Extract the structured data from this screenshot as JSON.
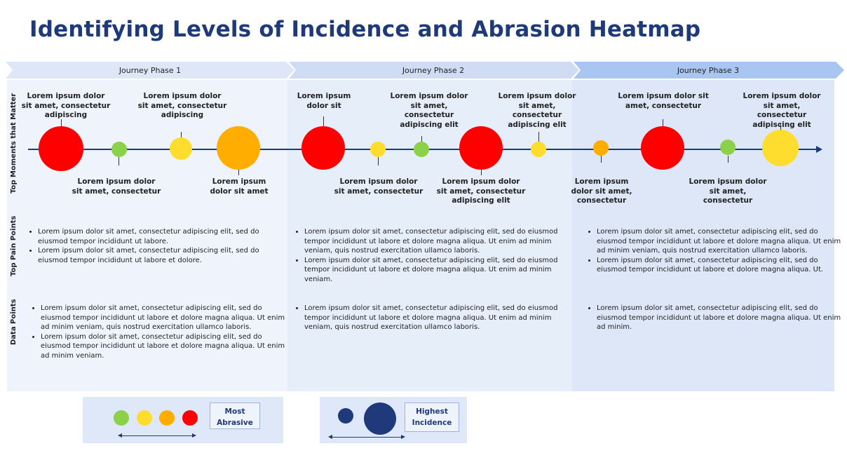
{
  "title": "Identifying Levels of Incidence and Abrasion Heatmap",
  "phases": [
    "Journey Phase 1",
    "Journey Phase 2",
    "Journey Phase 3"
  ],
  "row_labels": {
    "moments": "Top Moments that Matter",
    "pain": "Top Pain Points",
    "data": "Data Points"
  },
  "colors": {
    "red": "#ff0000",
    "orange": "#ffad00",
    "yellow": "#ffdd2e",
    "green": "#8cd14a",
    "navy": "#1f3a7a"
  },
  "moment_labels": {
    "p1_top_a": "Lorem ipsum dolor sit amet, consectetur adipiscing",
    "p1_top_b": "Lorem ipsum dolor sit amet, consectetur adipiscing",
    "p1_bot_a": "Lorem ipsum dolor sit amet, consectetur",
    "p1_bot_b": "Lorem ipsum dolor sit amet",
    "p2_top_a": "Lorem ipsum dolor sit",
    "p2_top_b": "Lorem ipsum dolor sit amet, consectetur adipiscing elit",
    "p2_top_c": "Lorem ipsum dolor sit amet, consectetur adipiscing elit",
    "p2_bot_a": "Lorem ipsum dolor sit amet, consectetur",
    "p2_bot_b": "Lorem ipsum dolor sit amet, consectetur adipiscing elit",
    "p3_top_a": "Lorem ipsum dolor sit amet, consectetur",
    "p3_top_b": "Lorem ipsum dolor sit amet, consectetur adipiscing elit",
    "p3_bot_a": "Lorem ipsum dolor sit amet, consectetur",
    "p3_bot_b": "Lorem ipsum dolor sit amet, consectetur"
  },
  "pain_points": {
    "p1": [
      "Lorem ipsum dolor sit amet, consectetur adipiscing elit, sed do eiusmod tempor incididunt ut labore.",
      "Lorem ipsum dolor sit amet, consectetur adipiscing elit, sed do eiusmod tempor incididunt ut labore et dolore."
    ],
    "p2": [
      "Lorem ipsum dolor sit amet, consectetur adipiscing elit, sed do eiusmod tempor incididunt ut labore et dolore magna aliqua. Ut enim ad minim veniam, quis nostrud exercitation ullamco laboris.",
      "Lorem ipsum dolor sit amet, consectetur adipiscing elit, sed do eiusmod tempor incididunt ut labore et dolore magna aliqua. Ut enim ad minim veniam."
    ],
    "p3": [
      "Lorem ipsum dolor sit amet, consectetur adipiscing elit, sed do eiusmod tempor incididunt ut labore et dolore magna aliqua. Ut enim ad minim veniam, quis nostrud exercitation ullamco laboris.",
      "Lorem ipsum dolor sit amet, consectetur adipiscing elit, sed do eiusmod tempor incididunt ut labore et dolore magna aliqua. Ut."
    ]
  },
  "data_points": {
    "p1": [
      "Lorem ipsum dolor sit amet, consectetur adipiscing elit, sed do eiusmod tempor incididunt ut labore et dolore magna aliqua. Ut enim ad minim veniam, quis nostrud exercitation ullamco laboris.",
      "Lorem ipsum dolor sit amet, consectetur adipiscing elit, sed do eiusmod tempor incididunt ut labore et dolore magna aliqua. Ut enim ad minim veniam."
    ],
    "p2": [
      "Lorem ipsum dolor sit amet, consectetur adipiscing elit, sed do eiusmod tempor incididunt ut labore et dolore magna aliqua. Ut enim ad minim veniam, quis nostrud exercitation ullamco laboris."
    ],
    "p3": [
      "Lorem ipsum dolor sit amet, consectetur adipiscing elit, sed do eiusmod tempor incididunt ut labore et dolore magna aliqua. Ut enim ad minim."
    ]
  },
  "legend": {
    "abrasion_label": "Most Abrasive",
    "incidence_label": "Highest Incidence"
  }
}
